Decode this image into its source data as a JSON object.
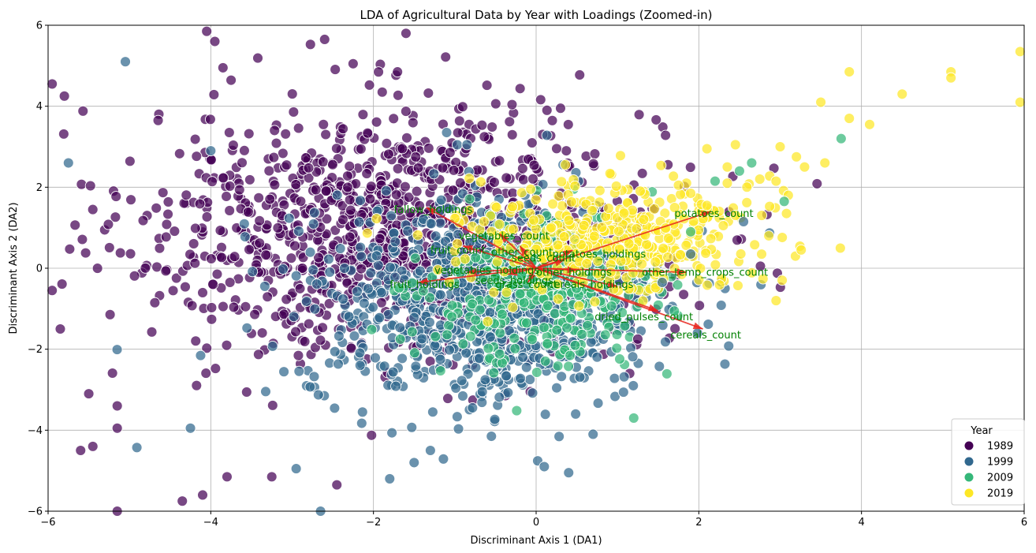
{
  "chart_data": {
    "type": "scatter",
    "title": "LDA of Agricultural Data by Year with Loadings (Zoomed-in)",
    "xlabel": "Discriminant Axis 1 (DA1)",
    "ylabel": "Discriminant Axis 2 (DA2)",
    "xlim": [
      -6,
      6
    ],
    "ylim": [
      -6,
      6
    ],
    "xticks": [
      -6,
      -4,
      -2,
      0,
      2,
      4,
      6
    ],
    "yticks": [
      -6,
      -4,
      -2,
      0,
      2,
      4,
      6
    ],
    "xtick_labels": [
      "−6",
      "−4",
      "−2",
      "0",
      "2",
      "4",
      "6"
    ],
    "ytick_labels": [
      "−6",
      "−4",
      "−2",
      "0",
      "2",
      "4",
      "6"
    ],
    "grid": true,
    "legend": {
      "title": "Year",
      "placement": "lower-right",
      "entries": [
        {
          "label": "1989",
          "color": "#440154"
        },
        {
          "label": "1999",
          "color": "#31688e"
        },
        {
          "label": "2009",
          "color": "#35b779"
        },
        {
          "label": "2019",
          "color": "#fde725"
        }
      ]
    },
    "series": [
      {
        "name": "1989",
        "color": "#440154",
        "cluster": {
          "center": [
            -1.7,
            0.9
          ],
          "spread": [
            1.6,
            1.7
          ],
          "count": 1150
        }
      },
      {
        "name": "1999",
        "color": "#31688e",
        "cluster": {
          "center": [
            -0.6,
            -0.9
          ],
          "spread": [
            1.1,
            1.4
          ],
          "count": 900
        }
      },
      {
        "name": "2009",
        "color": "#35b779",
        "cluster": {
          "center": [
            0.1,
            -0.6
          ],
          "spread": [
            0.7,
            1.0
          ],
          "count": 320
        }
      },
      {
        "name": "2019",
        "color": "#fde725",
        "cluster": {
          "center": [
            0.9,
            0.8
          ],
          "spread": [
            0.9,
            0.8
          ],
          "count": 420
        }
      }
    ],
    "extra_points": [
      {
        "series": "2019",
        "points": [
          [
            5.95,
            5.35
          ],
          [
            5.95,
            4.1
          ],
          [
            5.1,
            4.85
          ],
          [
            5.1,
            4.7
          ],
          [
            4.5,
            4.3
          ],
          [
            4.1,
            3.55
          ],
          [
            3.85,
            3.7
          ],
          [
            3.85,
            4.85
          ],
          [
            3.5,
            4.1
          ],
          [
            3.55,
            2.6
          ],
          [
            3.3,
            2.5
          ],
          [
            3.2,
            2.75
          ],
          [
            3.1,
            1.8
          ],
          [
            3.0,
            3.0
          ],
          [
            2.95,
            2.15
          ],
          [
            2.95,
            -0.8
          ],
          [
            2.75,
            2.2
          ],
          [
            2.45,
            3.05
          ],
          [
            2.35,
            2.5
          ],
          [
            2.35,
            2.1
          ],
          [
            2.1,
            2.95
          ],
          [
            2.1,
            1.55
          ],
          [
            1.9,
            1.85
          ],
          [
            1.75,
            2.05
          ]
        ]
      },
      {
        "series": "2009",
        "points": [
          [
            3.75,
            3.2
          ],
          [
            3.05,
            1.65
          ],
          [
            2.65,
            2.6
          ],
          [
            2.5,
            2.4
          ],
          [
            2.2,
            2.15
          ],
          [
            1.9,
            0.9
          ],
          [
            1.2,
            -3.7
          ],
          [
            1.15,
            -1.7
          ]
        ]
      },
      {
        "series": "1999",
        "points": [
          [
            2.55,
            1.15
          ],
          [
            1.9,
            0.35
          ],
          [
            1.55,
            -0.35
          ],
          [
            0.7,
            -4.1
          ],
          [
            0.4,
            -5.05
          ],
          [
            0.1,
            -4.9
          ],
          [
            -0.55,
            -4.15
          ],
          [
            -1.3,
            -4.5
          ],
          [
            -1.5,
            -4.8
          ],
          [
            -1.8,
            -5.2
          ],
          [
            -2.65,
            -6.0
          ],
          [
            -2.95,
            -4.95
          ],
          [
            -4.25,
            -3.95
          ],
          [
            -5.05,
            5.1
          ],
          [
            -5.75,
            2.6
          ],
          [
            -4.0,
            2.9
          ],
          [
            -1.1,
            3.35
          ],
          [
            -0.85,
            3.05
          ]
        ]
      },
      {
        "series": "1989",
        "points": [
          [
            -4.05,
            5.85
          ],
          [
            -3.95,
            5.6
          ],
          [
            -2.6,
            5.65
          ],
          [
            -1.6,
            5.8
          ],
          [
            -2.25,
            5.05
          ],
          [
            -3.85,
            4.95
          ],
          [
            -5.95,
            4.55
          ],
          [
            -5.8,
            4.25
          ],
          [
            -4.35,
            -5.75
          ],
          [
            -4.1,
            -5.6
          ],
          [
            -3.8,
            -5.15
          ],
          [
            -5.15,
            -6.0
          ],
          [
            -3.25,
            -5.15
          ],
          [
            -2.45,
            -5.35
          ],
          [
            -5.6,
            -4.5
          ],
          [
            -5.45,
            -4.4
          ],
          [
            -5.15,
            -3.95
          ],
          [
            -5.15,
            -3.4
          ],
          [
            -5.5,
            -3.1
          ],
          [
            -5.85,
            -1.5
          ],
          [
            -5.95,
            -0.55
          ],
          [
            0.3,
            3.95
          ],
          [
            1.25,
            -1.75
          ]
        ]
      }
    ],
    "loadings": [
      {
        "label": "potatoes_count",
        "x": 2.15,
        "y": 1.4,
        "label_x": 1.7,
        "label_y": 1.35
      },
      {
        "label": "cereals_count",
        "x": 2.05,
        "y": -1.5,
        "label_x": 1.65,
        "label_y": -1.65
      },
      {
        "label": "dried_pulses_count",
        "x": 1.5,
        "y": -1.05,
        "label_x": 0.72,
        "label_y": -1.2
      },
      {
        "label": "other_temp_crops_count",
        "x": 1.85,
        "y": -0.1,
        "label_x": 1.3,
        "label_y": -0.1
      },
      {
        "label": "cereals_holdings",
        "x": 1.0,
        "y": -0.45,
        "label_x": 0.15,
        "label_y": -0.4
      },
      {
        "label": "other_holdings",
        "x": 0.5,
        "y": -0.05,
        "label_x": 0.0,
        "label_y": -0.1
      },
      {
        "label": "potatoes_holdings",
        "x": 0.45,
        "y": 0.45,
        "label_x": 0.2,
        "label_y": 0.35
      },
      {
        "label": "seeds_count",
        "x": 0.35,
        "y": 0.2,
        "label_x": -0.3,
        "label_y": 0.25
      },
      {
        "label": "other_count",
        "x": -0.2,
        "y": 0.55,
        "label_x": -0.55,
        "label_y": 0.4
      },
      {
        "label": "vegetables_count",
        "x": -0.45,
        "y": 0.85,
        "label_x": -0.95,
        "label_y": 0.8
      },
      {
        "label": "seeds_holdings",
        "x": -0.35,
        "y": -0.15,
        "label_x": -0.75,
        "label_y": -0.3
      },
      {
        "label": "grass_count",
        "x": -0.1,
        "y": -0.35,
        "label_x": -0.5,
        "label_y": -0.4
      },
      {
        "label": "vegetables_holdings",
        "x": -0.85,
        "y": -0.1,
        "label_x": -1.25,
        "label_y": -0.05
      },
      {
        "label": "fruit_holdings",
        "x": -1.45,
        "y": -0.35,
        "label_x": -1.8,
        "label_y": -0.4
      },
      {
        "label": "fallow_holdings",
        "x": -1.35,
        "y": 1.5,
        "label_x": -1.75,
        "label_y": 1.45
      },
      {
        "label": "fruit_count",
        "x": -0.9,
        "y": 0.55,
        "label_x": -1.3,
        "label_y": 0.45
      }
    ]
  }
}
